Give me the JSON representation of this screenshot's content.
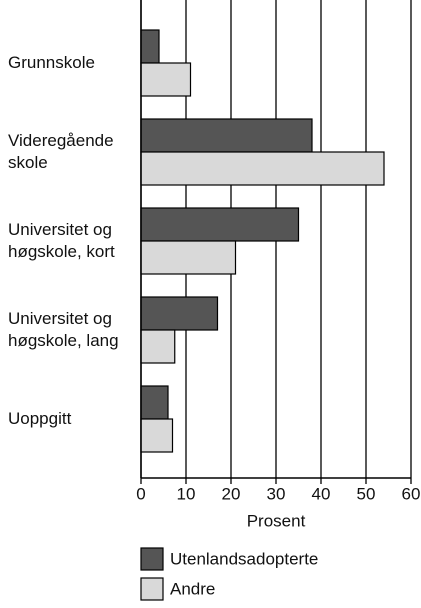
{
  "chart_data": {
    "type": "hbar",
    "categories": [
      "Grunnskole",
      "Videregående skole",
      "Universitet og høgskole, kort",
      "Universitet og høgskole, lang",
      "Uoppgitt"
    ],
    "series": [
      {
        "name": "Utenlandsadopterte",
        "color": "#555555",
        "values": [
          4,
          38,
          35,
          17,
          6
        ]
      },
      {
        "name": "Andre",
        "color": "#d9d9d9",
        "values": [
          11,
          54,
          21,
          7.5,
          7
        ]
      }
    ],
    "xlabel": "Prosent",
    "xlim": [
      0,
      60
    ],
    "xticks": [
      0,
      10,
      20,
      30,
      40,
      50,
      60
    ],
    "grid": true
  }
}
